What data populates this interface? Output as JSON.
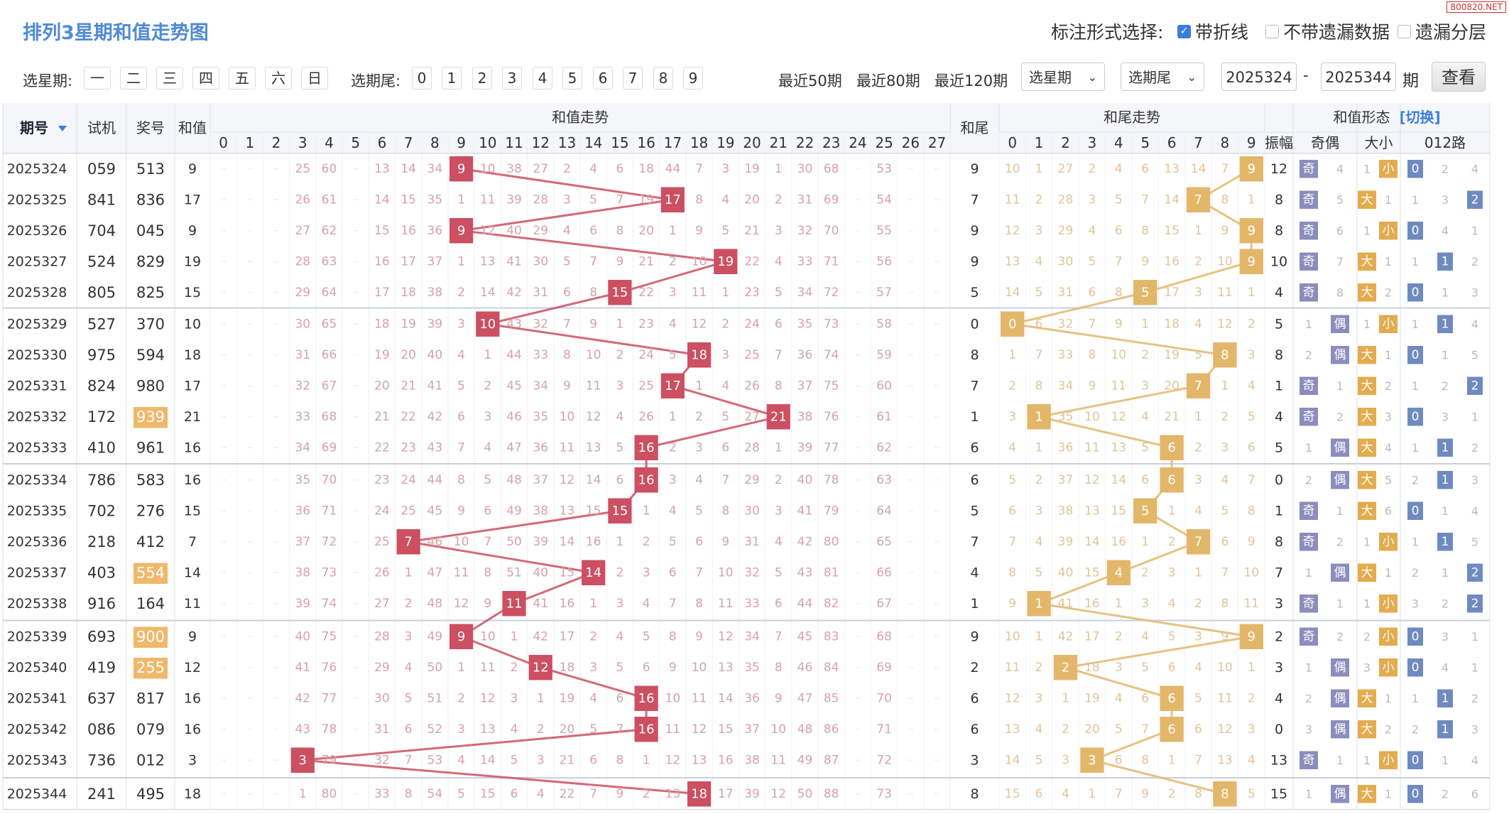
{
  "watermark": "800820.NET",
  "title": "排列3星期和值走势图",
  "header": {
    "options_label": "标注形式选择:",
    "opt_polyline": "带折线",
    "opt_no_omit": "不带遗漏数据",
    "opt_layer": "遗漏分层"
  },
  "toolbar": {
    "weekday_label": "选星期:",
    "weekdays": [
      "一",
      "二",
      "三",
      "四",
      "五",
      "六",
      "日"
    ],
    "tail_label": "选期尾:",
    "tails": [
      "0",
      "1",
      "2",
      "3",
      "4",
      "5",
      "6",
      "7",
      "8",
      "9"
    ],
    "ranges": [
      "最近50期",
      "最近80期",
      "最近120期"
    ],
    "select_week": "选星期",
    "select_tail": "选期尾",
    "date_from": "2025324",
    "date_to": "2025344",
    "sep": "-",
    "period_unit": "期",
    "query_button": "查看"
  },
  "table_headers": {
    "period": "期号",
    "sort_icon": "triangle-down-icon",
    "trial": "试机",
    "prize": "奖号",
    "sum": "和值",
    "sum_trend": "和值走势",
    "sum_tail": "和尾",
    "tail_trend": "和尾走势",
    "shape": "和值形态",
    "switch_link": "[切换]",
    "span": "振幅",
    "odd_even": "奇偶",
    "big_small": "大小",
    "route": "012路",
    "sum_cols": [
      "0",
      "1",
      "2",
      "3",
      "4",
      "5",
      "6",
      "7",
      "8",
      "9",
      "10",
      "11",
      "12",
      "13",
      "14",
      "15",
      "16",
      "17",
      "18",
      "19",
      "20",
      "21",
      "22",
      "23",
      "24",
      "25",
      "26",
      "27"
    ],
    "tail_cols": [
      "0",
      "1",
      "2",
      "3",
      "4",
      "5",
      "6",
      "7",
      "8",
      "9"
    ],
    "route_cols": [
      "0",
      "1",
      "2"
    ]
  },
  "colors": {
    "sum_hit": "#cc4f62",
    "tail_hit": "#e3b76a",
    "odd": "#8c8cbd",
    "route": "#6f8ac0",
    "big_small": "#e3ac4f",
    "prize_hl": "#f0b86a",
    "sum_line": "#cc4f62",
    "tail_line": "#e3b76a",
    "title": "#4f8bd6",
    "link": "#3b7ddd"
  },
  "rows": [
    {
      "period": "2025324",
      "trial": "059",
      "prize": "513",
      "hl": false,
      "sum": 9,
      "tail": 9,
      "span": 12,
      "oe": "奇",
      "oe_miss": 4,
      "bs": "小",
      "bs_miss": 1,
      "route": 0,
      "route_miss": [
        0,
        2,
        4
      ],
      "sm": [
        "",
        "",
        "",
        "25",
        "60",
        "",
        "13",
        "14",
        "34",
        "",
        "10",
        "38",
        "27",
        "2",
        "4",
        "6",
        "18",
        "44",
        "7",
        "3",
        "19",
        "1",
        "30",
        "68",
        "",
        "53",
        "",
        ""
      ],
      "tm": [
        "10",
        "1",
        "27",
        "2",
        "4",
        "6",
        "13",
        "14",
        "7",
        ""
      ]
    },
    {
      "period": "2025325",
      "trial": "841",
      "prize": "836",
      "hl": false,
      "sum": 17,
      "tail": 7,
      "span": 8,
      "oe": "奇",
      "oe_miss": 5,
      "bs": "大",
      "bs_miss": 1,
      "route": 2,
      "route_miss": [
        1,
        3,
        0
      ],
      "sm": [
        "",
        "",
        "",
        "26",
        "61",
        "",
        "14",
        "15",
        "35",
        "1",
        "11",
        "39",
        "28",
        "3",
        "5",
        "7",
        "19",
        "",
        "8",
        "4",
        "20",
        "2",
        "31",
        "69",
        "",
        "54",
        "",
        ""
      ],
      "tm": [
        "11",
        "2",
        "28",
        "3",
        "5",
        "7",
        "14",
        "",
        "8",
        "1"
      ]
    },
    {
      "period": "2025326",
      "trial": "704",
      "prize": "045",
      "hl": false,
      "sum": 9,
      "tail": 9,
      "span": 8,
      "oe": "奇",
      "oe_miss": 6,
      "bs": "小",
      "bs_miss": 1,
      "route": 0,
      "route_miss": [
        0,
        4,
        1
      ],
      "sm": [
        "",
        "",
        "",
        "27",
        "62",
        "",
        "15",
        "16",
        "36",
        "",
        "12",
        "40",
        "29",
        "4",
        "6",
        "8",
        "20",
        "1",
        "9",
        "5",
        "21",
        "3",
        "32",
        "70",
        "",
        "55",
        "",
        ""
      ],
      "tm": [
        "12",
        "3",
        "29",
        "4",
        "6",
        "8",
        "15",
        "1",
        "9",
        ""
      ]
    },
    {
      "period": "2025327",
      "trial": "524",
      "prize": "829",
      "hl": false,
      "sum": 19,
      "tail": 9,
      "span": 10,
      "oe": "奇",
      "oe_miss": 7,
      "bs": "大",
      "bs_miss": 1,
      "route": 1,
      "route_miss": [
        1,
        0,
        2
      ],
      "sm": [
        "",
        "",
        "",
        "28",
        "63",
        "",
        "16",
        "17",
        "37",
        "1",
        "13",
        "41",
        "30",
        "5",
        "7",
        "9",
        "21",
        "2",
        "10",
        "",
        "22",
        "4",
        "33",
        "71",
        "",
        "56",
        "",
        ""
      ],
      "tm": [
        "13",
        "4",
        "30",
        "5",
        "7",
        "9",
        "16",
        "2",
        "10",
        ""
      ]
    },
    {
      "period": "2025328",
      "trial": "805",
      "prize": "825",
      "hl": false,
      "sum": 15,
      "tail": 5,
      "span": 4,
      "oe": "奇",
      "oe_miss": 8,
      "bs": "大",
      "bs_miss": 2,
      "route": 0,
      "route_miss": [
        0,
        1,
        3
      ],
      "sm": [
        "",
        "",
        "",
        "29",
        "64",
        "",
        "17",
        "18",
        "38",
        "2",
        "14",
        "42",
        "31",
        "6",
        "8",
        "",
        "22",
        "3",
        "11",
        "1",
        "23",
        "5",
        "34",
        "72",
        "",
        "57",
        "",
        ""
      ],
      "tm": [
        "14",
        "5",
        "31",
        "6",
        "8",
        "",
        "17",
        "3",
        "11",
        "1"
      ]
    },
    {
      "period": "2025329",
      "trial": "527",
      "prize": "370",
      "hl": false,
      "sum": 10,
      "tail": 0,
      "span": 5,
      "oe": "偶",
      "oe_miss": 1,
      "bs": "小",
      "bs_miss": 1,
      "route": 1,
      "route_miss": [
        1,
        0,
        4
      ],
      "sm": [
        "",
        "",
        "",
        "30",
        "65",
        "",
        "18",
        "19",
        "39",
        "3",
        "",
        "43",
        "32",
        "7",
        "9",
        "1",
        "23",
        "4",
        "12",
        "2",
        "24",
        "6",
        "35",
        "73",
        "",
        "58",
        "",
        ""
      ],
      "tm": [
        "",
        "6",
        "32",
        "7",
        "9",
        "1",
        "18",
        "4",
        "12",
        "2"
      ]
    },
    {
      "period": "2025330",
      "trial": "975",
      "prize": "594",
      "hl": false,
      "sum": 18,
      "tail": 8,
      "span": 8,
      "oe": "偶",
      "oe_miss": 2,
      "bs": "大",
      "bs_miss": 1,
      "route": 0,
      "route_miss": [
        0,
        1,
        5
      ],
      "sm": [
        "",
        "",
        "",
        "31",
        "66",
        "",
        "19",
        "20",
        "40",
        "4",
        "1",
        "44",
        "33",
        "8",
        "10",
        "2",
        "24",
        "5",
        "",
        "3",
        "25",
        "7",
        "36",
        "74",
        "",
        "59",
        "",
        ""
      ],
      "tm": [
        "1",
        "7",
        "33",
        "8",
        "10",
        "2",
        "19",
        "5",
        "",
        "3"
      ]
    },
    {
      "period": "2025331",
      "trial": "824",
      "prize": "980",
      "hl": false,
      "sum": 17,
      "tail": 7,
      "span": 1,
      "oe": "奇",
      "oe_miss": 1,
      "bs": "大",
      "bs_miss": 2,
      "route": 2,
      "route_miss": [
        1,
        2,
        0
      ],
      "sm": [
        "",
        "",
        "",
        "32",
        "67",
        "",
        "20",
        "21",
        "41",
        "5",
        "2",
        "45",
        "34",
        "9",
        "11",
        "3",
        "25",
        "",
        "1",
        "4",
        "26",
        "8",
        "37",
        "75",
        "",
        "60",
        "",
        ""
      ],
      "tm": [
        "2",
        "8",
        "34",
        "9",
        "11",
        "3",
        "20",
        "",
        "1",
        "4"
      ]
    },
    {
      "period": "2025332",
      "trial": "172",
      "prize": "939",
      "hl": true,
      "sum": 21,
      "tail": 1,
      "span": 4,
      "oe": "奇",
      "oe_miss": 2,
      "bs": "大",
      "bs_miss": 3,
      "route": 0,
      "route_miss": [
        0,
        3,
        1
      ],
      "sm": [
        "",
        "",
        "",
        "33",
        "68",
        "",
        "21",
        "22",
        "42",
        "6",
        "3",
        "46",
        "35",
        "10",
        "12",
        "4",
        "26",
        "1",
        "2",
        "5",
        "27",
        "",
        "38",
        "76",
        "",
        "61",
        "",
        ""
      ],
      "tm": [
        "3",
        "",
        "35",
        "10",
        "12",
        "4",
        "21",
        "1",
        "2",
        "5"
      ]
    },
    {
      "period": "2025333",
      "trial": "410",
      "prize": "961",
      "hl": false,
      "sum": 16,
      "tail": 6,
      "span": 5,
      "oe": "偶",
      "oe_miss": 1,
      "bs": "大",
      "bs_miss": 4,
      "route": 1,
      "route_miss": [
        1,
        0,
        2
      ],
      "sm": [
        "",
        "",
        "",
        "34",
        "69",
        "",
        "22",
        "23",
        "43",
        "7",
        "4",
        "47",
        "36",
        "11",
        "13",
        "5",
        "",
        "2",
        "3",
        "6",
        "28",
        "1",
        "39",
        "77",
        "",
        "62",
        "",
        ""
      ],
      "tm": [
        "4",
        "1",
        "36",
        "11",
        "13",
        "5",
        "",
        "2",
        "3",
        "6"
      ]
    },
    {
      "period": "2025334",
      "trial": "786",
      "prize": "583",
      "hl": false,
      "sum": 16,
      "tail": 6,
      "span": 0,
      "oe": "偶",
      "oe_miss": 2,
      "bs": "大",
      "bs_miss": 5,
      "route": 1,
      "route_miss": [
        2,
        0,
        3
      ],
      "sm": [
        "",
        "",
        "",
        "35",
        "70",
        "",
        "23",
        "24",
        "44",
        "8",
        "5",
        "48",
        "37",
        "12",
        "14",
        "6",
        "",
        "3",
        "4",
        "7",
        "29",
        "2",
        "40",
        "78",
        "",
        "63",
        "",
        ""
      ],
      "tm": [
        "5",
        "2",
        "37",
        "12",
        "14",
        "6",
        "",
        "3",
        "4",
        "7"
      ]
    },
    {
      "period": "2025335",
      "trial": "702",
      "prize": "276",
      "hl": false,
      "sum": 15,
      "tail": 5,
      "span": 1,
      "oe": "奇",
      "oe_miss": 1,
      "bs": "大",
      "bs_miss": 6,
      "route": 0,
      "route_miss": [
        0,
        1,
        4
      ],
      "sm": [
        "",
        "",
        "",
        "36",
        "71",
        "",
        "24",
        "25",
        "45",
        "9",
        "6",
        "49",
        "38",
        "13",
        "15",
        "",
        "1",
        "4",
        "5",
        "8",
        "30",
        "3",
        "41",
        "79",
        "",
        "64",
        "",
        ""
      ],
      "tm": [
        "6",
        "3",
        "38",
        "13",
        "15",
        "",
        "1",
        "4",
        "5",
        "8"
      ]
    },
    {
      "period": "2025336",
      "trial": "218",
      "prize": "412",
      "hl": false,
      "sum": 7,
      "tail": 7,
      "span": 8,
      "oe": "奇",
      "oe_miss": 2,
      "bs": "小",
      "bs_miss": 1,
      "route": 1,
      "route_miss": [
        1,
        0,
        5
      ],
      "sm": [
        "",
        "",
        "",
        "37",
        "72",
        "",
        "25",
        "",
        "46",
        "10",
        "7",
        "50",
        "39",
        "14",
        "16",
        "1",
        "2",
        "5",
        "6",
        "9",
        "31",
        "4",
        "42",
        "80",
        "",
        "65",
        "",
        ""
      ],
      "tm": [
        "7",
        "4",
        "39",
        "14",
        "16",
        "1",
        "2",
        "",
        "6",
        "9"
      ]
    },
    {
      "period": "2025337",
      "trial": "403",
      "prize": "554",
      "hl": true,
      "sum": 14,
      "tail": 4,
      "span": 7,
      "oe": "偶",
      "oe_miss": 1,
      "bs": "大",
      "bs_miss": 1,
      "route": 2,
      "route_miss": [
        2,
        1,
        0
      ],
      "sm": [
        "",
        "",
        "",
        "38",
        "73",
        "",
        "26",
        "1",
        "47",
        "11",
        "8",
        "51",
        "40",
        "15",
        "",
        "2",
        "3",
        "6",
        "7",
        "10",
        "32",
        "5",
        "43",
        "81",
        "",
        "66",
        "",
        ""
      ],
      "tm": [
        "8",
        "5",
        "40",
        "15",
        "",
        "2",
        "3",
        "1",
        "7",
        "10"
      ]
    },
    {
      "period": "2025338",
      "trial": "916",
      "prize": "164",
      "hl": false,
      "sum": 11,
      "tail": 1,
      "span": 3,
      "oe": "奇",
      "oe_miss": 1,
      "bs": "小",
      "bs_miss": 1,
      "route": 2,
      "route_miss": [
        3,
        2,
        0
      ],
      "sm": [
        "",
        "",
        "",
        "39",
        "74",
        "",
        "27",
        "2",
        "48",
        "12",
        "9",
        "",
        "41",
        "16",
        "1",
        "3",
        "4",
        "7",
        "8",
        "11",
        "33",
        "6",
        "44",
        "82",
        "",
        "67",
        "",
        ""
      ],
      "tm": [
        "9",
        "",
        "41",
        "16",
        "1",
        "3",
        "4",
        "2",
        "8",
        "11"
      ]
    },
    {
      "period": "2025339",
      "trial": "693",
      "prize": "900",
      "hl": true,
      "sum": 9,
      "tail": 9,
      "span": 2,
      "oe": "奇",
      "oe_miss": 2,
      "bs": "小",
      "bs_miss": 2,
      "route": 0,
      "route_miss": [
        0,
        3,
        1
      ],
      "sm": [
        "",
        "",
        "",
        "40",
        "75",
        "",
        "28",
        "3",
        "49",
        "",
        "10",
        "1",
        "42",
        "17",
        "2",
        "4",
        "5",
        "8",
        "9",
        "12",
        "34",
        "7",
        "45",
        "83",
        "",
        "68",
        "",
        ""
      ],
      "tm": [
        "10",
        "1",
        "42",
        "17",
        "2",
        "4",
        "5",
        "3",
        "9",
        ""
      ]
    },
    {
      "period": "2025340",
      "trial": "419",
      "prize": "255",
      "hl": true,
      "sum": 12,
      "tail": 2,
      "span": 3,
      "oe": "偶",
      "oe_miss": 1,
      "bs": "小",
      "bs_miss": 3,
      "route": 0,
      "route_miss": [
        0,
        4,
        1
      ],
      "sm": [
        "",
        "",
        "",
        "41",
        "76",
        "",
        "29",
        "4",
        "50",
        "1",
        "11",
        "2",
        "",
        "18",
        "3",
        "5",
        "6",
        "9",
        "10",
        "13",
        "35",
        "8",
        "46",
        "84",
        "",
        "69",
        "",
        ""
      ],
      "tm": [
        "11",
        "2",
        "",
        "18",
        "3",
        "5",
        "6",
        "4",
        "10",
        "1"
      ]
    },
    {
      "period": "2025341",
      "trial": "637",
      "prize": "817",
      "hl": false,
      "sum": 16,
      "tail": 6,
      "span": 4,
      "oe": "偶",
      "oe_miss": 2,
      "bs": "大",
      "bs_miss": 1,
      "route": 1,
      "route_miss": [
        1,
        0,
        2
      ],
      "sm": [
        "",
        "",
        "",
        "42",
        "77",
        "",
        "30",
        "5",
        "51",
        "2",
        "12",
        "3",
        "1",
        "19",
        "4",
        "6",
        "",
        "10",
        "11",
        "14",
        "36",
        "9",
        "47",
        "85",
        "",
        "70",
        "",
        ""
      ],
      "tm": [
        "12",
        "3",
        "1",
        "19",
        "4",
        "6",
        "",
        "5",
        "11",
        "2"
      ]
    },
    {
      "period": "2025342",
      "trial": "086",
      "prize": "079",
      "hl": false,
      "sum": 16,
      "tail": 6,
      "span": 0,
      "oe": "偶",
      "oe_miss": 3,
      "bs": "大",
      "bs_miss": 2,
      "route": 1,
      "route_miss": [
        2,
        0,
        3
      ],
      "sm": [
        "",
        "",
        "",
        "43",
        "78",
        "",
        "31",
        "6",
        "52",
        "3",
        "13",
        "4",
        "2",
        "20",
        "5",
        "7",
        "",
        "11",
        "12",
        "15",
        "37",
        "10",
        "48",
        "86",
        "",
        "71",
        "",
        ""
      ],
      "tm": [
        "13",
        "4",
        "2",
        "20",
        "5",
        "7",
        "",
        "6",
        "12",
        "3"
      ]
    },
    {
      "period": "2025343",
      "trial": "736",
      "prize": "012",
      "hl": false,
      "sum": 3,
      "tail": 3,
      "span": 13,
      "oe": "奇",
      "oe_miss": 1,
      "bs": "小",
      "bs_miss": 1,
      "route": 0,
      "route_miss": [
        0,
        1,
        4
      ],
      "sm": [
        "",
        "",
        "",
        "",
        "79",
        "",
        "32",
        "7",
        "53",
        "4",
        "14",
        "5",
        "3",
        "21",
        "6",
        "8",
        "1",
        "12",
        "13",
        "16",
        "38",
        "11",
        "49",
        "87",
        "",
        "72",
        "",
        ""
      ],
      "tm": [
        "14",
        "5",
        "3",
        "",
        "6",
        "8",
        "1",
        "7",
        "13",
        "4"
      ]
    },
    {
      "period": "2025344",
      "trial": "241",
      "prize": "495",
      "hl": false,
      "sum": 18,
      "tail": 8,
      "span": 15,
      "oe": "偶",
      "oe_miss": 1,
      "bs": "大",
      "bs_miss": 1,
      "route": 0,
      "route_miss": [
        0,
        2,
        6
      ],
      "sm": [
        "",
        "",
        "",
        "1",
        "80",
        "",
        "33",
        "8",
        "54",
        "5",
        "15",
        "6",
        "4",
        "22",
        "7",
        "9",
        "2",
        "13",
        "",
        "17",
        "39",
        "12",
        "50",
        "88",
        "",
        "73",
        "",
        ""
      ],
      "tm": [
        "15",
        "6",
        "4",
        "1",
        "7",
        "9",
        "2",
        "8",
        "",
        "5"
      ]
    }
  ]
}
